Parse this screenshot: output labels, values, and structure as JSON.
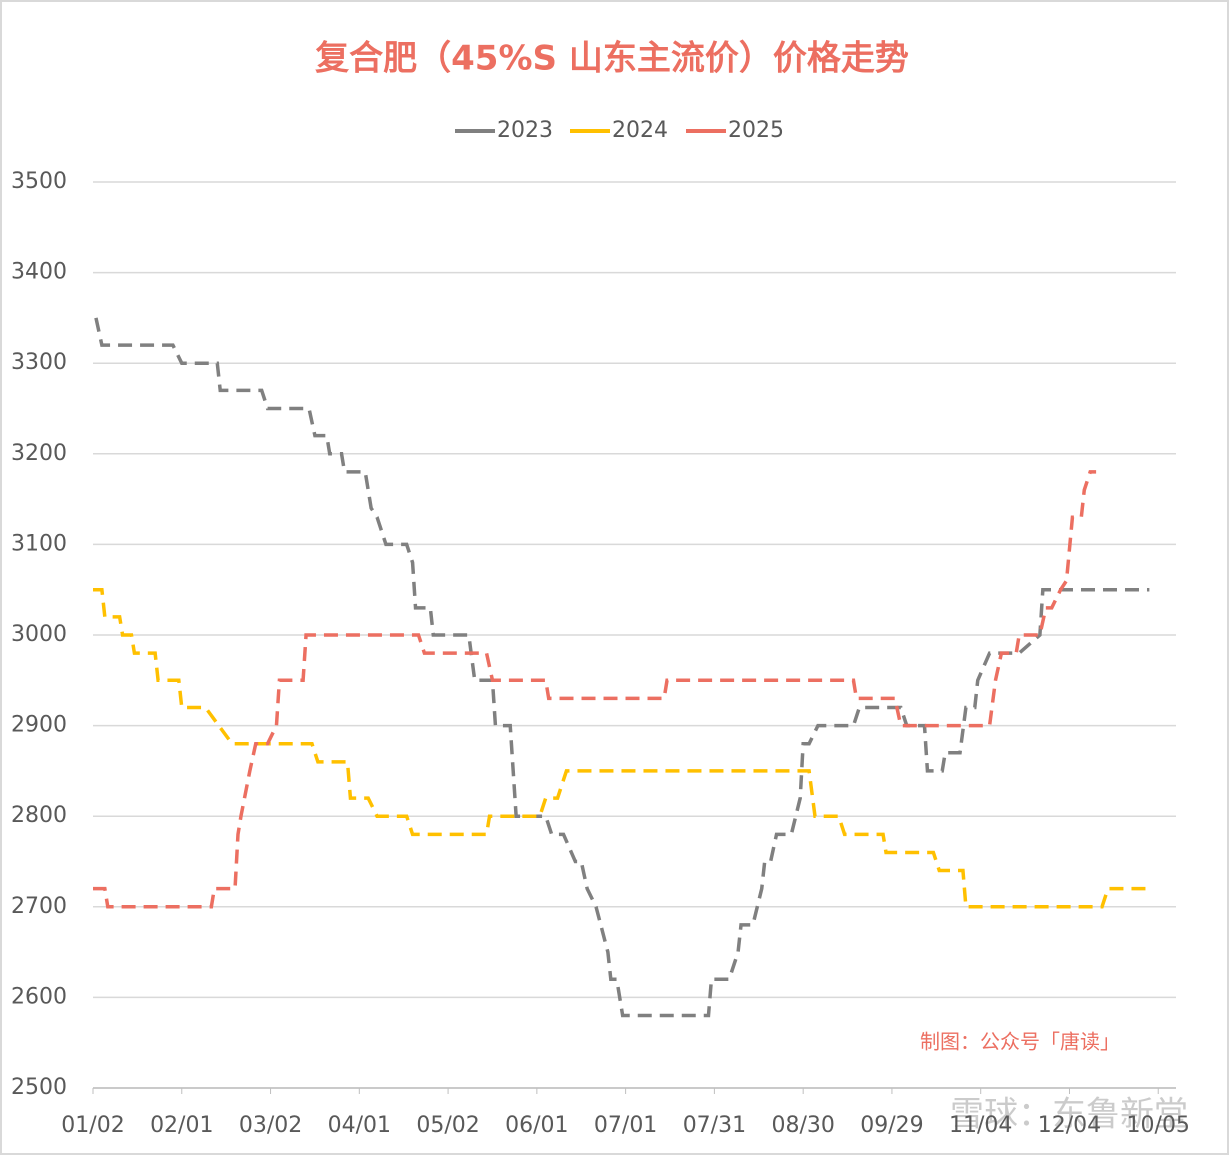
{
  "chart_data": {
    "type": "line",
    "title": "复合肥（45%S 山东主流价）价格走势",
    "annotations": [
      "制图：公众号「唐读」",
      "雪球：东鲁新堂"
    ],
    "xlim": [
      0,
      366
    ],
    "xticks": [
      {
        "value": 0,
        "label": "01/02"
      },
      {
        "value": 30,
        "label": "02/01"
      },
      {
        "value": 60,
        "label": "03/02"
      },
      {
        "value": 90,
        "label": "04/01"
      },
      {
        "value": 120,
        "label": "05/02"
      },
      {
        "value": 150,
        "label": "06/01"
      },
      {
        "value": 180,
        "label": "07/01"
      },
      {
        "value": 210,
        "label": "07/31"
      },
      {
        "value": 240,
        "label": "08/30"
      },
      {
        "value": 270,
        "label": "09/29"
      },
      {
        "value": 300,
        "label": "11/04"
      },
      {
        "value": 330,
        "label": "12/04"
      },
      {
        "value": 360,
        "label": "10/05"
      }
    ],
    "ylim": [
      2500,
      3500
    ],
    "yticks": [
      2500,
      2600,
      2700,
      2800,
      2900,
      3000,
      3100,
      3200,
      3300,
      3400,
      3500
    ],
    "grid": true,
    "legend": "top",
    "series": [
      {
        "name": "2023",
        "color": "#808080",
        "x": [
          1,
          3,
          19,
          27,
          30,
          42,
          43,
          57,
          59,
          73,
          75,
          79,
          80,
          84,
          85,
          92,
          94,
          96,
          99,
          106,
          108,
          109,
          114,
          115,
          127,
          129,
          135,
          136,
          141,
          142,
          143,
          153,
          155,
          159,
          163,
          165,
          167,
          170,
          174,
          175,
          177,
          179,
          208,
          209,
          215,
          218,
          219,
          223,
          226,
          227,
          229,
          231,
          236,
          239,
          240,
          242,
          245,
          257,
          259,
          273,
          275,
          281,
          282,
          287,
          288,
          293,
          295,
          298,
          299,
          303,
          313,
          320,
          321,
          357
        ],
        "values": [
          3350,
          3320,
          3320,
          3320,
          3300,
          3300,
          3270,
          3270,
          3250,
          3250,
          3220,
          3220,
          3200,
          3200,
          3180,
          3180,
          3140,
          3130,
          3100,
          3100,
          3080,
          3030,
          3030,
          3000,
          3000,
          2950,
          2950,
          2900,
          2900,
          2850,
          2800,
          2800,
          2780,
          2780,
          2750,
          2750,
          2720,
          2700,
          2650,
          2620,
          2620,
          2580,
          2580,
          2620,
          2620,
          2650,
          2680,
          2680,
          2720,
          2750,
          2750,
          2780,
          2780,
          2820,
          2880,
          2880,
          2900,
          2900,
          2920,
          2920,
          2900,
          2900,
          2850,
          2850,
          2870,
          2870,
          2920,
          2920,
          2950,
          2980,
          2980,
          3000,
          3050,
          3050
        ]
      },
      {
        "name": "2024",
        "color": "#ffc000",
        "x": [
          0,
          3,
          4,
          9,
          10,
          13,
          14,
          21,
          22,
          29,
          30,
          38,
          47,
          74,
          76,
          86,
          87,
          93,
          96,
          106,
          108,
          133,
          134,
          151,
          153,
          157,
          160,
          242,
          244,
          252,
          254,
          267,
          268,
          284,
          286,
          294,
          295,
          341,
          343,
          357
        ],
        "values": [
          3050,
          3050,
          3020,
          3020,
          3000,
          3000,
          2980,
          2980,
          2950,
          2950,
          2920,
          2920,
          2880,
          2880,
          2860,
          2860,
          2820,
          2820,
          2800,
          2800,
          2780,
          2780,
          2800,
          2800,
          2820,
          2820,
          2850,
          2850,
          2800,
          2800,
          2780,
          2780,
          2760,
          2760,
          2740,
          2740,
          2700,
          2700,
          2720,
          2720
        ]
      },
      {
        "name": "2025",
        "color": "#ec6f61",
        "x": [
          0,
          4,
          5,
          26,
          34,
          40,
          41,
          48,
          49,
          50,
          53,
          55,
          59,
          62,
          63,
          71,
          72,
          110,
          112,
          133,
          135,
          153,
          154,
          193,
          194,
          257,
          258,
          271,
          273,
          303,
          305,
          307,
          312,
          313,
          320,
          322,
          324,
          327,
          329,
          331,
          334,
          335,
          337,
          339
        ],
        "values": [
          2720,
          2720,
          2700,
          2700,
          2700,
          2700,
          2720,
          2720,
          2780,
          2800,
          2850,
          2880,
          2880,
          2900,
          2950,
          2950,
          3000,
          3000,
          2980,
          2980,
          2950,
          2950,
          2930,
          2930,
          2950,
          2950,
          2930,
          2930,
          2900,
          2900,
          2950,
          2980,
          2980,
          3000,
          3000,
          3030,
          3030,
          3050,
          3060,
          3130,
          3130,
          3160,
          3180,
          3180
        ]
      }
    ]
  }
}
